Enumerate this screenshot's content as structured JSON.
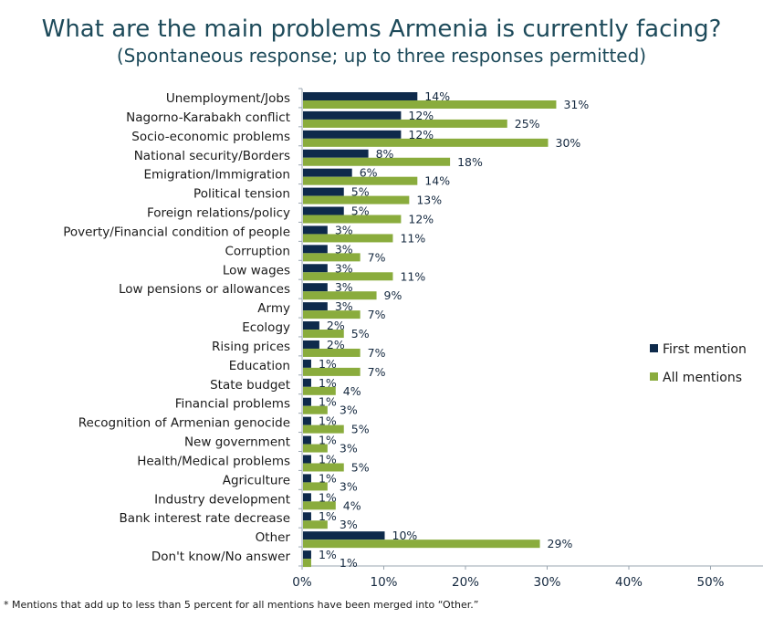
{
  "chart_data": {
    "type": "bar",
    "orientation": "horizontal",
    "title": "What are the main problems Armenia is currently facing?",
    "subtitle": "(Spontaneous response; up to three responses permitted)",
    "categories": [
      "Unemployment/Jobs",
      "Nagorno-Karabakh conflict",
      "Socio-economic problems",
      "National security/Borders",
      "Emigration/Immigration",
      "Political tension",
      "Foreign relations/policy",
      "Poverty/Financial condition of people",
      "Corruption",
      "Low wages",
      "Low pensions or allowances",
      "Army",
      "Ecology",
      "Rising prices",
      "Education",
      "State budget",
      "Financial problems",
      "Recognition of Armenian genocide",
      "New government",
      "Health/Medical problems",
      "Agriculture",
      "Industry development",
      "Bank interest rate decrease",
      "Other",
      "Don't know/No answer"
    ],
    "series": [
      {
        "name": "First mention",
        "color": "#0e2a4b",
        "values": [
          14,
          12,
          12,
          8,
          6,
          5,
          5,
          3,
          3,
          3,
          3,
          3,
          2,
          2,
          1,
          1,
          1,
          1,
          1,
          1,
          1,
          1,
          1,
          10,
          1
        ]
      },
      {
        "name": "All mentions",
        "color": "#8aac3d",
        "values": [
          31,
          25,
          30,
          18,
          14,
          13,
          12,
          11,
          7,
          11,
          9,
          7,
          5,
          7,
          7,
          4,
          3,
          5,
          3,
          5,
          3,
          4,
          3,
          29,
          1
        ]
      }
    ],
    "xlim": [
      0,
      55
    ],
    "xticks": [
      "0%",
      "10%",
      "20%",
      "30%",
      "40%",
      "50%"
    ],
    "value_suffix": "%",
    "legend": "right",
    "grid": false,
    "footnote": "* Mentions that add up to less than 5 percent for all mentions have been merged into “Other.”"
  }
}
